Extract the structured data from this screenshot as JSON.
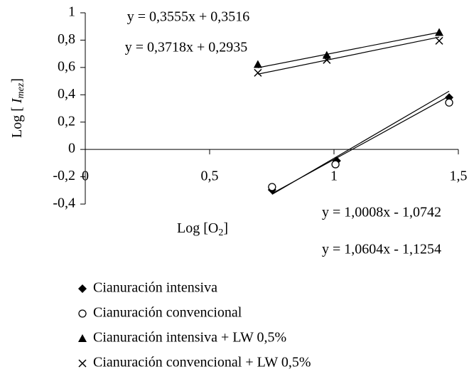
{
  "chart_data": {
    "type": "scatter",
    "xlabel": [
      "Log [O",
      "2",
      "]"
    ],
    "ylabel": [
      "Log [ ",
      "I",
      "mez",
      "]"
    ],
    "xlim": [
      0,
      1.5
    ],
    "ylim": [
      -0.4,
      1
    ],
    "xticks": [
      0,
      {
        "value": 0.5,
        "label": "0,5"
      },
      1,
      {
        "value": 1.5,
        "label": "1,5"
      }
    ],
    "yticks": [
      {
        "value": -0.4,
        "label": "-0,4"
      },
      {
        "value": -0.2,
        "label": "-0,2"
      },
      0,
      {
        "value": 0.2,
        "label": "0,2"
      },
      {
        "value": 0.4,
        "label": "0,4"
      },
      {
        "value": 0.6,
        "label": "0,6"
      },
      {
        "value": 0.8,
        "label": "0,8"
      },
      1
    ],
    "series": [
      {
        "name": "Cianuración intensiva",
        "marker": "diamond",
        "color": "#000000",
        "x": [
          0.751,
          1.011,
          1.463
        ],
        "values": [
          -0.296,
          -0.083,
          0.38
        ],
        "trendline": {
          "x": [
            0.751,
            1.463
          ],
          "values": [
            -0.323,
            0.39
          ]
        }
      },
      {
        "name": "Cianuración convencional",
        "marker": "circle",
        "color": "#000000",
        "x": [
          0.751,
          1.006,
          1.463
        ],
        "values": [
          -0.275,
          -0.109,
          0.343
        ],
        "trendline": {
          "x": [
            0.751,
            1.463
          ],
          "values": [
            -0.329,
            0.426
          ]
        }
      },
      {
        "name": "Cianuración intensiva + LW 0,5%",
        "marker": "triangle",
        "color": "#000000",
        "x": [
          0.694,
          0.971,
          1.423
        ],
        "values": [
          0.623,
          0.69,
          0.857
        ],
        "trendline": {
          "x": [
            0.694,
            1.423
          ],
          "values": [
            0.598,
            0.857
          ]
        }
      },
      {
        "name": "Cianuración convencional + LW 0,5%",
        "marker": "x",
        "color": "#000000",
        "x": [
          0.694,
          0.971,
          1.423
        ],
        "values": [
          0.561,
          0.655,
          0.795
        ],
        "trendline": {
          "x": [
            0.694,
            1.423
          ],
          "values": [
            0.551,
            0.822
          ]
        }
      }
    ],
    "annotations": [
      "y = 0,3555x + 0,3516",
      "y = 0,3718x + 0,2935",
      "y = 1,0008x - 1,0742",
      "y = 1,0604x - 1,1254"
    ]
  }
}
